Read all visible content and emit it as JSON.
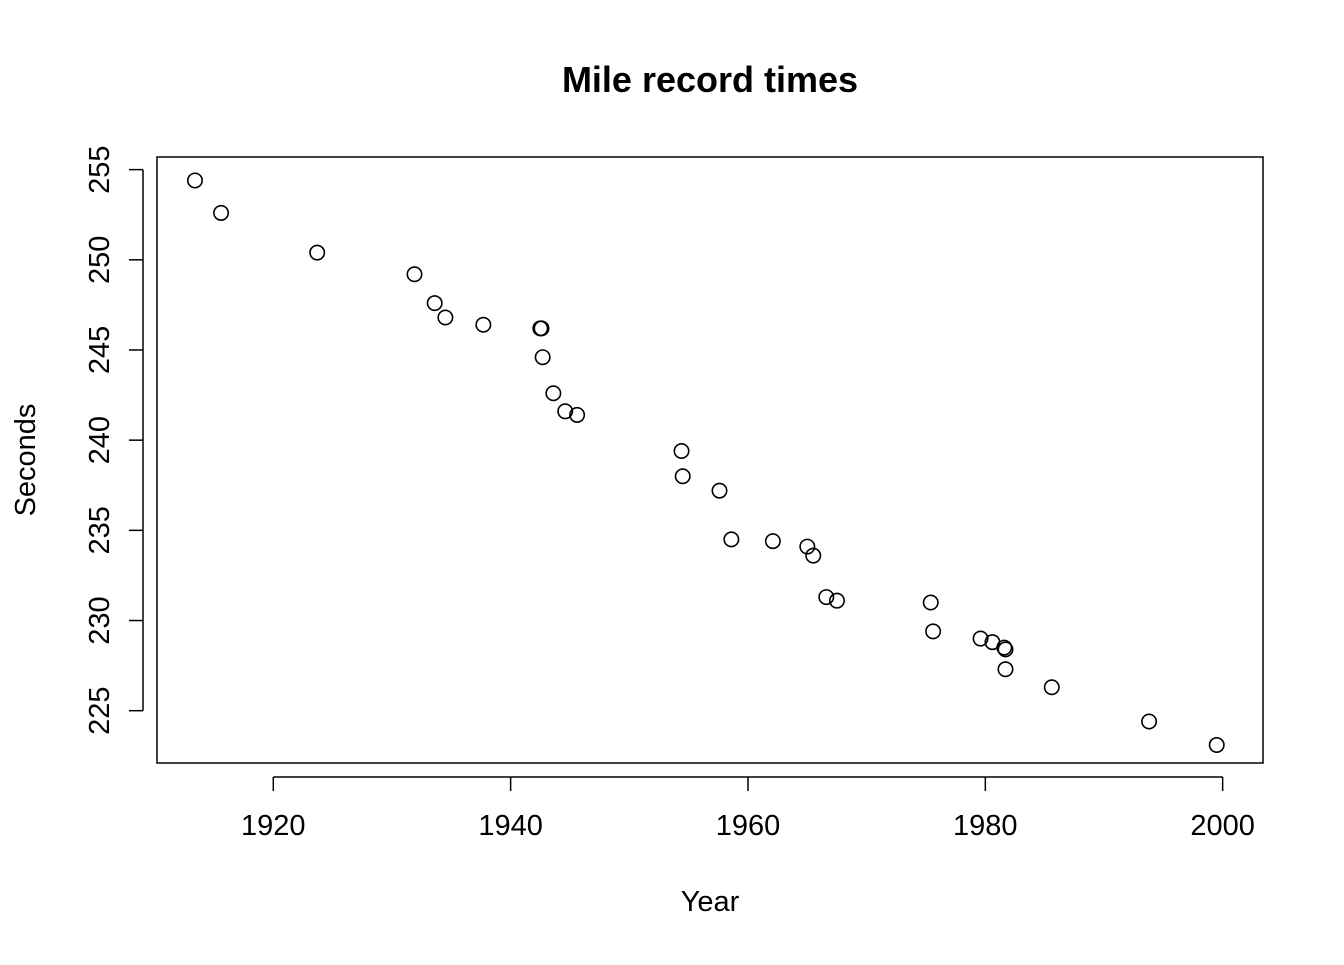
{
  "chart_data": {
    "type": "scatter",
    "title": "Mile record times",
    "xlabel": "Year",
    "ylabel": "Seconds",
    "xlim": [
      1910.2,
      2003.4
    ],
    "ylim": [
      222.1,
      255.7
    ],
    "x_ticks": [
      1920,
      1940,
      1960,
      1980,
      2000
    ],
    "y_ticks": [
      225,
      230,
      235,
      240,
      245,
      250,
      255
    ],
    "grid": false,
    "marker": "open-circle",
    "colors": {
      "axis": "#000000",
      "marker": "#000000",
      "background": "#ffffff"
    },
    "points": [
      {
        "x": 1913.4,
        "y": 254.4
      },
      {
        "x": 1915.6,
        "y": 252.6
      },
      {
        "x": 1923.7,
        "y": 250.4
      },
      {
        "x": 1931.9,
        "y": 249.2
      },
      {
        "x": 1933.6,
        "y": 247.6
      },
      {
        "x": 1934.5,
        "y": 246.8
      },
      {
        "x": 1937.7,
        "y": 246.4
      },
      {
        "x": 1942.5,
        "y": 246.2
      },
      {
        "x": 1942.6,
        "y": 246.2
      },
      {
        "x": 1942.7,
        "y": 244.6
      },
      {
        "x": 1943.6,
        "y": 242.6
      },
      {
        "x": 1944.6,
        "y": 241.6
      },
      {
        "x": 1945.6,
        "y": 241.4
      },
      {
        "x": 1954.4,
        "y": 239.4
      },
      {
        "x": 1954.5,
        "y": 238.0
      },
      {
        "x": 1957.6,
        "y": 237.2
      },
      {
        "x": 1958.6,
        "y": 234.5
      },
      {
        "x": 1962.1,
        "y": 234.4
      },
      {
        "x": 1965.0,
        "y": 234.1
      },
      {
        "x": 1965.5,
        "y": 233.6
      },
      {
        "x": 1966.6,
        "y": 231.3
      },
      {
        "x": 1967.5,
        "y": 231.1
      },
      {
        "x": 1975.4,
        "y": 231.0
      },
      {
        "x": 1975.6,
        "y": 229.4
      },
      {
        "x": 1979.6,
        "y": 229.0
      },
      {
        "x": 1980.6,
        "y": 228.8
      },
      {
        "x": 1981.6,
        "y": 228.5
      },
      {
        "x": 1981.7,
        "y": 228.4
      },
      {
        "x": 1981.7,
        "y": 227.3
      },
      {
        "x": 1985.6,
        "y": 226.3
      },
      {
        "x": 1993.8,
        "y": 224.4
      },
      {
        "x": 1999.5,
        "y": 223.1
      }
    ]
  }
}
